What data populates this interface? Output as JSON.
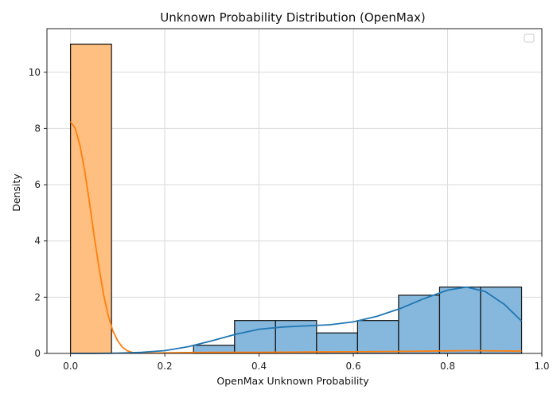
{
  "chart_data": {
    "type": "bar",
    "title": "Unknown Probability Distribution (OpenMax)",
    "xlabel": "OpenMax Unknown Probability",
    "ylabel": "Density",
    "xlim": [
      -0.05,
      1.0
    ],
    "ylim": [
      0,
      11.55
    ],
    "xticks": [
      0.0,
      0.2,
      0.4,
      0.6,
      0.8,
      1.0
    ],
    "xtick_labels": [
      "0.0",
      "0.2",
      "0.4",
      "0.6",
      "0.8",
      "1.0"
    ],
    "yticks": [
      0,
      2,
      4,
      6,
      8,
      10
    ],
    "ytick_labels": [
      "0",
      "2",
      "4",
      "6",
      "8",
      "10"
    ],
    "grid": true,
    "legend": {
      "placement": "top-right",
      "entries": []
    },
    "bin_edges": [
      0.0,
      0.087,
      0.174,
      0.261,
      0.348,
      0.435,
      0.522,
      0.609,
      0.696,
      0.783,
      0.87,
      0.957
    ],
    "series": [
      {
        "color": "#ffbf80",
        "edge_color": "#111111",
        "kde_color": "#ff7f0e",
        "values": [
          11.0,
          0.0,
          0.0,
          0.0,
          0.0,
          0.0,
          0.07,
          0.07,
          0.07,
          0.13,
          0.07
        ],
        "kde": {
          "x": [
            0.0,
            0.01,
            0.02,
            0.03,
            0.04,
            0.05,
            0.06,
            0.07,
            0.08,
            0.09,
            0.1,
            0.11,
            0.12,
            0.13,
            0.14,
            0.15,
            0.17,
            0.2,
            0.25,
            0.3,
            0.4,
            0.5,
            0.6,
            0.7,
            0.8,
            0.85,
            0.9,
            0.957
          ],
          "y": [
            8.25,
            8.0,
            7.4,
            6.5,
            5.4,
            4.2,
            3.1,
            2.1,
            1.35,
            0.8,
            0.45,
            0.22,
            0.1,
            0.04,
            0.015,
            0.01,
            0.01,
            0.02,
            0.03,
            0.04,
            0.04,
            0.05,
            0.06,
            0.07,
            0.09,
            0.1,
            0.09,
            0.08
          ]
        }
      },
      {
        "color": "#86b7dc",
        "edge_color": "#111111",
        "kde_color": "#1f77b4",
        "values": [
          0.0,
          0.0,
          0.0,
          0.29,
          1.17,
          1.17,
          0.73,
          1.17,
          2.07,
          2.36,
          2.36
        ],
        "kde": {
          "x": [
            0.0,
            0.05,
            0.1,
            0.15,
            0.2,
            0.25,
            0.3,
            0.35,
            0.4,
            0.45,
            0.5,
            0.55,
            0.6,
            0.65,
            0.7,
            0.75,
            0.8,
            0.84,
            0.88,
            0.92,
            0.957
          ],
          "y": [
            0.0,
            0.0,
            0.01,
            0.04,
            0.1,
            0.24,
            0.45,
            0.68,
            0.86,
            0.94,
            0.98,
            1.02,
            1.12,
            1.32,
            1.6,
            1.95,
            2.25,
            2.36,
            2.2,
            1.75,
            1.15
          ]
        }
      }
    ]
  }
}
